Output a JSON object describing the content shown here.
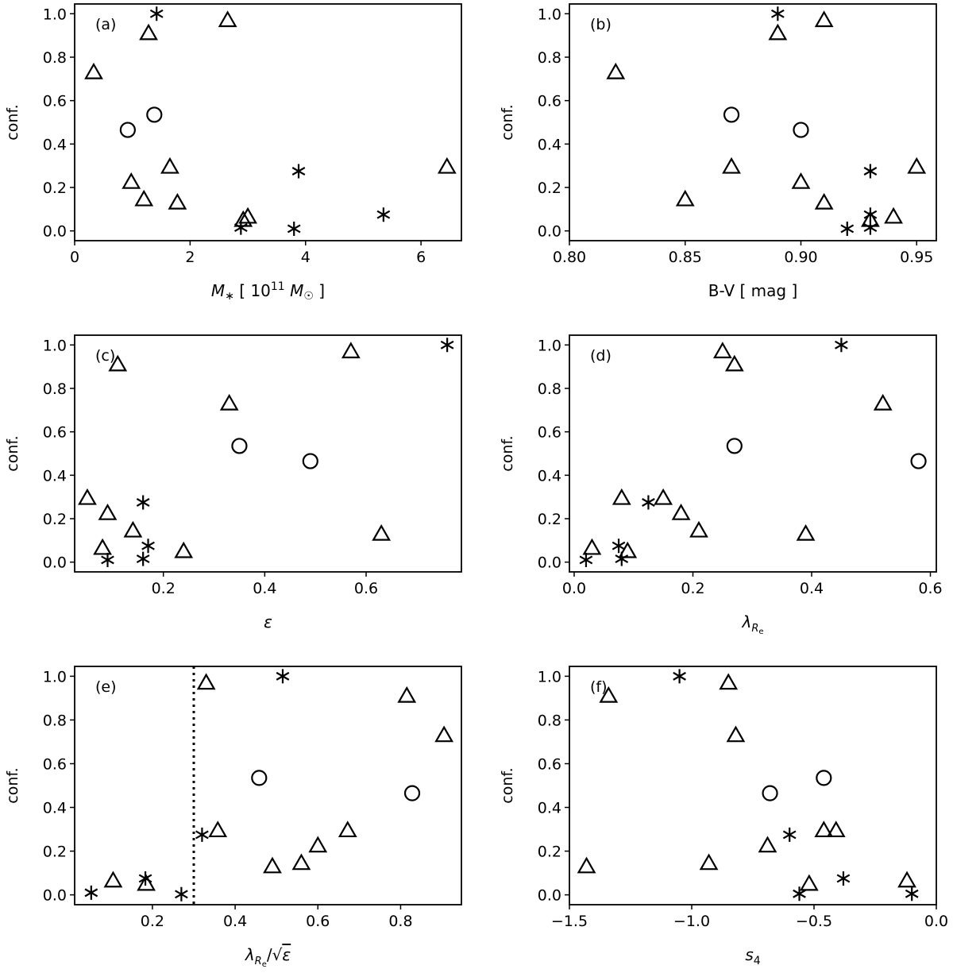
{
  "chart_data": [
    {
      "type": "scatter",
      "panel_label": "(a)",
      "xlabel": "M_* [ 10^11 M_☉ ]",
      "ylabel": "conf.",
      "xlim": [
        0,
        6.7
      ],
      "ylim": [
        -0.045,
        1.045
      ],
      "xticks": [
        0,
        2,
        4,
        6
      ],
      "xtick_labels": [
        "0",
        "2",
        "4",
        "6"
      ],
      "yticks": [
        0.0,
        0.2,
        0.4,
        0.6,
        0.8,
        1.0
      ],
      "ytick_labels": [
        "0.0",
        "0.2",
        "0.4",
        "0.6",
        "0.8",
        "1.0"
      ],
      "grid": false,
      "points": [
        {
          "marker": "asterisk",
          "x": 1.42,
          "y": 1.0
        },
        {
          "marker": "triangle",
          "x": 2.65,
          "y": 0.97
        },
        {
          "marker": "triangle",
          "x": 1.28,
          "y": 0.91
        },
        {
          "marker": "triangle",
          "x": 0.33,
          "y": 0.73
        },
        {
          "marker": "circle",
          "x": 1.38,
          "y": 0.535
        },
        {
          "marker": "circle",
          "x": 0.92,
          "y": 0.465
        },
        {
          "marker": "triangle",
          "x": 1.65,
          "y": 0.295
        },
        {
          "marker": "triangle",
          "x": 6.45,
          "y": 0.295
        },
        {
          "marker": "asterisk",
          "x": 3.88,
          "y": 0.275
        },
        {
          "marker": "triangle",
          "x": 0.98,
          "y": 0.225
        },
        {
          "marker": "triangle",
          "x": 1.2,
          "y": 0.145
        },
        {
          "marker": "triangle",
          "x": 1.78,
          "y": 0.13
        },
        {
          "marker": "asterisk",
          "x": 5.35,
          "y": 0.075
        },
        {
          "marker": "triangle",
          "x": 3.0,
          "y": 0.065
        },
        {
          "marker": "triangle",
          "x": 2.92,
          "y": 0.05
        },
        {
          "marker": "asterisk",
          "x": 2.88,
          "y": 0.015
        },
        {
          "marker": "asterisk",
          "x": 3.8,
          "y": 0.01
        }
      ]
    },
    {
      "type": "scatter",
      "panel_label": "(b)",
      "xlabel": "B-V [ mag ]",
      "ylabel": "conf.",
      "xlim": [
        0.8,
        0.9585
      ],
      "ylim": [
        -0.045,
        1.045
      ],
      "xticks": [
        0.8,
        0.85,
        0.9,
        0.95
      ],
      "xtick_labels": [
        "0.80",
        "0.85",
        "0.90",
        "0.95"
      ],
      "yticks": [
        0.0,
        0.2,
        0.4,
        0.6,
        0.8,
        1.0
      ],
      "ytick_labels": [
        "0.0",
        "0.2",
        "0.4",
        "0.6",
        "0.8",
        "1.0"
      ],
      "grid": false,
      "points": [
        {
          "marker": "asterisk",
          "x": 0.89,
          "y": 1.0
        },
        {
          "marker": "triangle",
          "x": 0.91,
          "y": 0.97
        },
        {
          "marker": "triangle",
          "x": 0.89,
          "y": 0.91
        },
        {
          "marker": "triangle",
          "x": 0.82,
          "y": 0.73
        },
        {
          "marker": "circle",
          "x": 0.87,
          "y": 0.535
        },
        {
          "marker": "circle",
          "x": 0.9,
          "y": 0.465
        },
        {
          "marker": "triangle",
          "x": 0.87,
          "y": 0.295
        },
        {
          "marker": "triangle",
          "x": 0.95,
          "y": 0.295
        },
        {
          "marker": "asterisk",
          "x": 0.93,
          "y": 0.275
        },
        {
          "marker": "triangle",
          "x": 0.9,
          "y": 0.225
        },
        {
          "marker": "triangle",
          "x": 0.85,
          "y": 0.145
        },
        {
          "marker": "triangle",
          "x": 0.91,
          "y": 0.13
        },
        {
          "marker": "asterisk",
          "x": 0.93,
          "y": 0.075
        },
        {
          "marker": "triangle",
          "x": 0.94,
          "y": 0.065
        },
        {
          "marker": "triangle",
          "x": 0.93,
          "y": 0.05
        },
        {
          "marker": "asterisk",
          "x": 0.93,
          "y": 0.015
        },
        {
          "marker": "asterisk",
          "x": 0.92,
          "y": 0.01
        }
      ]
    },
    {
      "type": "scatter",
      "panel_label": "(c)",
      "xlabel": "ε",
      "ylabel": "conf.",
      "xlim": [
        0.025,
        0.788
      ],
      "ylim": [
        -0.045,
        1.045
      ],
      "xticks": [
        0.2,
        0.4,
        0.6
      ],
      "xtick_labels": [
        "0.2",
        "0.4",
        "0.6"
      ],
      "yticks": [
        0.0,
        0.2,
        0.4,
        0.6,
        0.8,
        1.0
      ],
      "ytick_labels": [
        "0.0",
        "0.2",
        "0.4",
        "0.6",
        "0.8",
        "1.0"
      ],
      "grid": false,
      "points": [
        {
          "marker": "asterisk",
          "x": 0.76,
          "y": 1.0
        },
        {
          "marker": "triangle",
          "x": 0.57,
          "y": 0.97
        },
        {
          "marker": "triangle",
          "x": 0.11,
          "y": 0.91
        },
        {
          "marker": "triangle",
          "x": 0.33,
          "y": 0.73
        },
        {
          "marker": "circle",
          "x": 0.35,
          "y": 0.535
        },
        {
          "marker": "circle",
          "x": 0.49,
          "y": 0.465
        },
        {
          "marker": "triangle",
          "x": 0.05,
          "y": 0.295
        },
        {
          "marker": "asterisk",
          "x": 0.16,
          "y": 0.275
        },
        {
          "marker": "triangle",
          "x": 0.09,
          "y": 0.225
        },
        {
          "marker": "triangle",
          "x": 0.14,
          "y": 0.145
        },
        {
          "marker": "triangle",
          "x": 0.63,
          "y": 0.13
        },
        {
          "marker": "asterisk",
          "x": 0.17,
          "y": 0.075
        },
        {
          "marker": "triangle",
          "x": 0.08,
          "y": 0.065
        },
        {
          "marker": "triangle",
          "x": 0.24,
          "y": 0.05
        },
        {
          "marker": "asterisk",
          "x": 0.16,
          "y": 0.015
        },
        {
          "marker": "asterisk",
          "x": 0.09,
          "y": 0.01
        }
      ]
    },
    {
      "type": "scatter",
      "panel_label": "(d)",
      "xlabel": "λ_Re",
      "ylabel": "conf.",
      "xlim": [
        -0.008,
        0.61
      ],
      "ylim": [
        -0.045,
        1.045
      ],
      "xticks": [
        0.0,
        0.2,
        0.4,
        0.6
      ],
      "xtick_labels": [
        "0.0",
        "0.2",
        "0.4",
        "0.6"
      ],
      "yticks": [
        0.0,
        0.2,
        0.4,
        0.6,
        0.8,
        1.0
      ],
      "ytick_labels": [
        "0.0",
        "0.2",
        "0.4",
        "0.6",
        "0.8",
        "1.0"
      ],
      "grid": false,
      "points": [
        {
          "marker": "asterisk",
          "x": 0.45,
          "y": 1.0
        },
        {
          "marker": "triangle",
          "x": 0.25,
          "y": 0.97
        },
        {
          "marker": "triangle",
          "x": 0.27,
          "y": 0.91
        },
        {
          "marker": "triangle",
          "x": 0.52,
          "y": 0.73
        },
        {
          "marker": "circle",
          "x": 0.27,
          "y": 0.535
        },
        {
          "marker": "circle",
          "x": 0.58,
          "y": 0.465
        },
        {
          "marker": "triangle",
          "x": 0.08,
          "y": 0.295
        },
        {
          "marker": "triangle",
          "x": 0.15,
          "y": 0.295
        },
        {
          "marker": "asterisk",
          "x": 0.125,
          "y": 0.275
        },
        {
          "marker": "triangle",
          "x": 0.18,
          "y": 0.225
        },
        {
          "marker": "triangle",
          "x": 0.21,
          "y": 0.145
        },
        {
          "marker": "triangle",
          "x": 0.39,
          "y": 0.13
        },
        {
          "marker": "asterisk",
          "x": 0.075,
          "y": 0.075
        },
        {
          "marker": "triangle",
          "x": 0.03,
          "y": 0.065
        },
        {
          "marker": "triangle",
          "x": 0.09,
          "y": 0.05
        },
        {
          "marker": "asterisk",
          "x": 0.08,
          "y": 0.015
        },
        {
          "marker": "asterisk",
          "x": 0.02,
          "y": 0.01
        }
      ]
    },
    {
      "type": "scatter",
      "panel_label": "(e)",
      "xlabel": "λ_Re/√ε",
      "ylabel": "conf.",
      "xlim": [
        0.012,
        0.947
      ],
      "ylim": [
        -0.045,
        1.045
      ],
      "xticks": [
        0.2,
        0.4,
        0.6,
        0.8
      ],
      "xtick_labels": [
        "0.2",
        "0.4",
        "0.6",
        "0.8"
      ],
      "yticks": [
        0.0,
        0.2,
        0.4,
        0.6,
        0.8,
        1.0
      ],
      "ytick_labels": [
        "0.0",
        "0.2",
        "0.4",
        "0.6",
        "0.8",
        "1.0"
      ],
      "grid": false,
      "vline": {
        "x": 0.3,
        "style": "dotted"
      },
      "points": [
        {
          "marker": "asterisk",
          "x": 0.515,
          "y": 1.0
        },
        {
          "marker": "triangle",
          "x": 0.33,
          "y": 0.97
        },
        {
          "marker": "triangle",
          "x": 0.815,
          "y": 0.91
        },
        {
          "marker": "triangle",
          "x": 0.905,
          "y": 0.73
        },
        {
          "marker": "circle",
          "x": 0.458,
          "y": 0.535
        },
        {
          "marker": "circle",
          "x": 0.828,
          "y": 0.465
        },
        {
          "marker": "triangle",
          "x": 0.358,
          "y": 0.295
        },
        {
          "marker": "triangle",
          "x": 0.672,
          "y": 0.295
        },
        {
          "marker": "asterisk",
          "x": 0.32,
          "y": 0.275
        },
        {
          "marker": "triangle",
          "x": 0.6,
          "y": 0.225
        },
        {
          "marker": "triangle",
          "x": 0.56,
          "y": 0.145
        },
        {
          "marker": "triangle",
          "x": 0.49,
          "y": 0.13
        },
        {
          "marker": "asterisk",
          "x": 0.183,
          "y": 0.075
        },
        {
          "marker": "triangle",
          "x": 0.105,
          "y": 0.065
        },
        {
          "marker": "triangle",
          "x": 0.185,
          "y": 0.05
        },
        {
          "marker": "asterisk",
          "x": 0.052,
          "y": 0.01
        },
        {
          "marker": "asterisk",
          "x": 0.27,
          "y": 0.003
        }
      ]
    },
    {
      "type": "scatter",
      "panel_label": "(f)",
      "xlabel": "s_4",
      "ylabel": "conf.",
      "xlim": [
        -1.5,
        0.0
      ],
      "ylim": [
        -0.045,
        1.045
      ],
      "xticks": [
        -1.5,
        -1.0,
        -0.5,
        0.0
      ],
      "xtick_labels": [
        "−1.5",
        "−1.0",
        "−0.5",
        "0.0"
      ],
      "yticks": [
        0.0,
        0.2,
        0.4,
        0.6,
        0.8,
        1.0
      ],
      "ytick_labels": [
        "0.0",
        "0.2",
        "0.4",
        "0.6",
        "0.8",
        "1.0"
      ],
      "grid": false,
      "points": [
        {
          "marker": "asterisk",
          "x": -1.05,
          "y": 1.0
        },
        {
          "marker": "triangle",
          "x": -0.85,
          "y": 0.97
        },
        {
          "marker": "triangle",
          "x": -1.34,
          "y": 0.91
        },
        {
          "marker": "triangle",
          "x": -0.82,
          "y": 0.73
        },
        {
          "marker": "circle",
          "x": -0.46,
          "y": 0.535
        },
        {
          "marker": "circle",
          "x": -0.68,
          "y": 0.465
        },
        {
          "marker": "triangle",
          "x": -0.46,
          "y": 0.295
        },
        {
          "marker": "triangle",
          "x": -0.41,
          "y": 0.295
        },
        {
          "marker": "asterisk",
          "x": -0.6,
          "y": 0.275
        },
        {
          "marker": "triangle",
          "x": -0.69,
          "y": 0.225
        },
        {
          "marker": "triangle",
          "x": -0.93,
          "y": 0.145
        },
        {
          "marker": "triangle",
          "x": -1.43,
          "y": 0.13
        },
        {
          "marker": "asterisk",
          "x": -0.38,
          "y": 0.075
        },
        {
          "marker": "triangle",
          "x": -0.12,
          "y": 0.065
        },
        {
          "marker": "triangle",
          "x": -0.52,
          "y": 0.05
        },
        {
          "marker": "asterisk",
          "x": -0.56,
          "y": 0.005
        },
        {
          "marker": "asterisk",
          "x": -0.1,
          "y": 0.005
        }
      ]
    }
  ]
}
